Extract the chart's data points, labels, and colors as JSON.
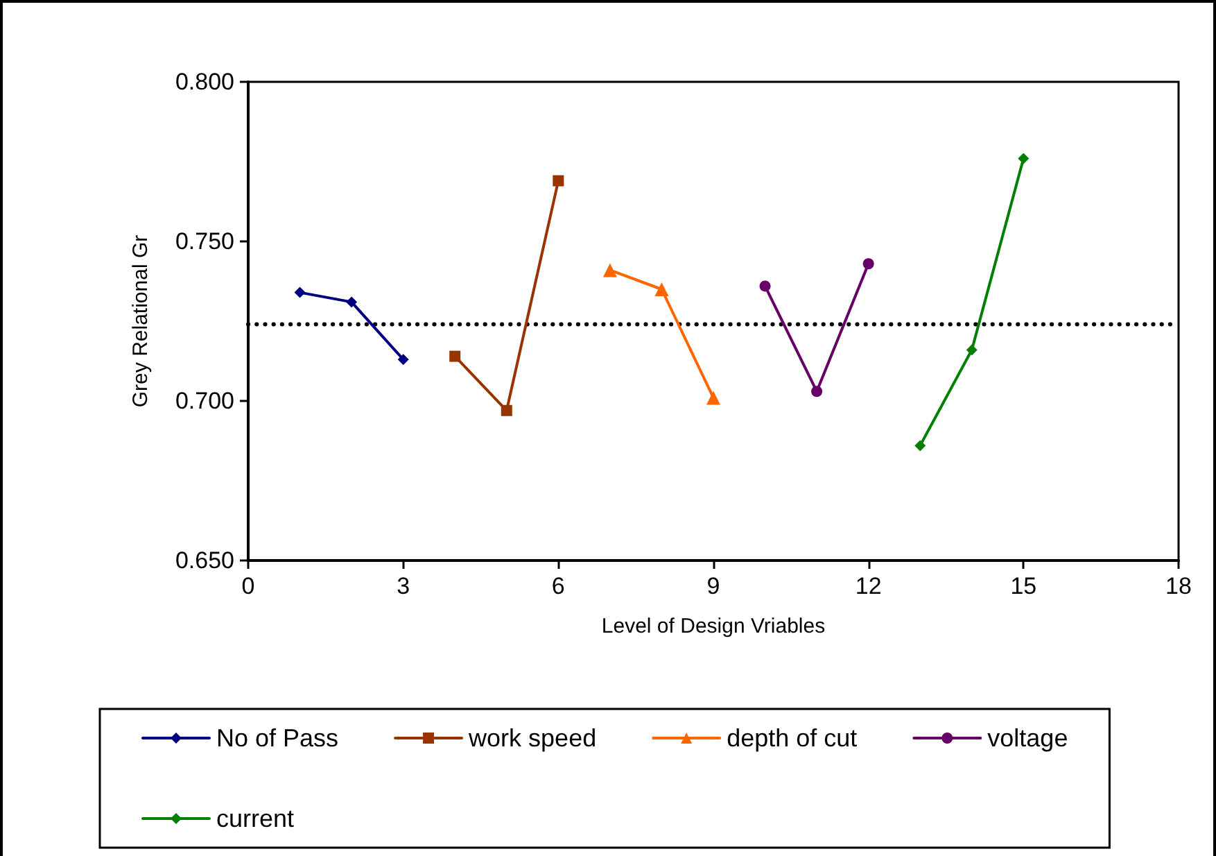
{
  "chart_data": {
    "type": "line",
    "xlabel": "Level of Design Vriables",
    "ylabel": "Grey Relational Gr",
    "xlim": [
      0,
      18
    ],
    "xticks": [
      0,
      3,
      6,
      9,
      12,
      15,
      18
    ],
    "ylim": [
      0.65,
      0.8
    ],
    "yticks": [
      {
        "value": 0.65,
        "label": "0.650"
      },
      {
        "value": 0.7,
        "label": "0.700"
      },
      {
        "value": 0.75,
        "label": "0.750"
      },
      {
        "value": 0.8,
        "label": "0.800"
      }
    ],
    "grid": false,
    "legend": "bottom",
    "line_style": "solid",
    "series": [
      {
        "name": "No of Pass",
        "color": "#000080",
        "marker": "diamond",
        "x": [
          1,
          2,
          3
        ],
        "values": [
          0.734,
          0.731,
          0.713
        ]
      },
      {
        "name": "work speed",
        "color": "#993300",
        "marker": "square",
        "x": [
          4,
          5,
          6
        ],
        "values": [
          0.714,
          0.697,
          0.769
        ]
      },
      {
        "name": "depth of cut",
        "color": "#ff6600",
        "marker": "triangle",
        "x": [
          7,
          8,
          9
        ],
        "values": [
          0.741,
          0.735,
          0.701
        ]
      },
      {
        "name": "voltage",
        "color": "#660066",
        "marker": "circle",
        "x": [
          10,
          11,
          12
        ],
        "values": [
          0.736,
          0.703,
          0.743
        ]
      },
      {
        "name": "current",
        "color": "#008000",
        "marker": "diamond",
        "x": [
          13,
          14,
          15
        ],
        "values": [
          0.686,
          0.716,
          0.776
        ]
      }
    ],
    "ref_lines": [
      {
        "axis": "y",
        "value": 0.724,
        "color": "#000000",
        "line_style": "dotted"
      }
    ]
  }
}
